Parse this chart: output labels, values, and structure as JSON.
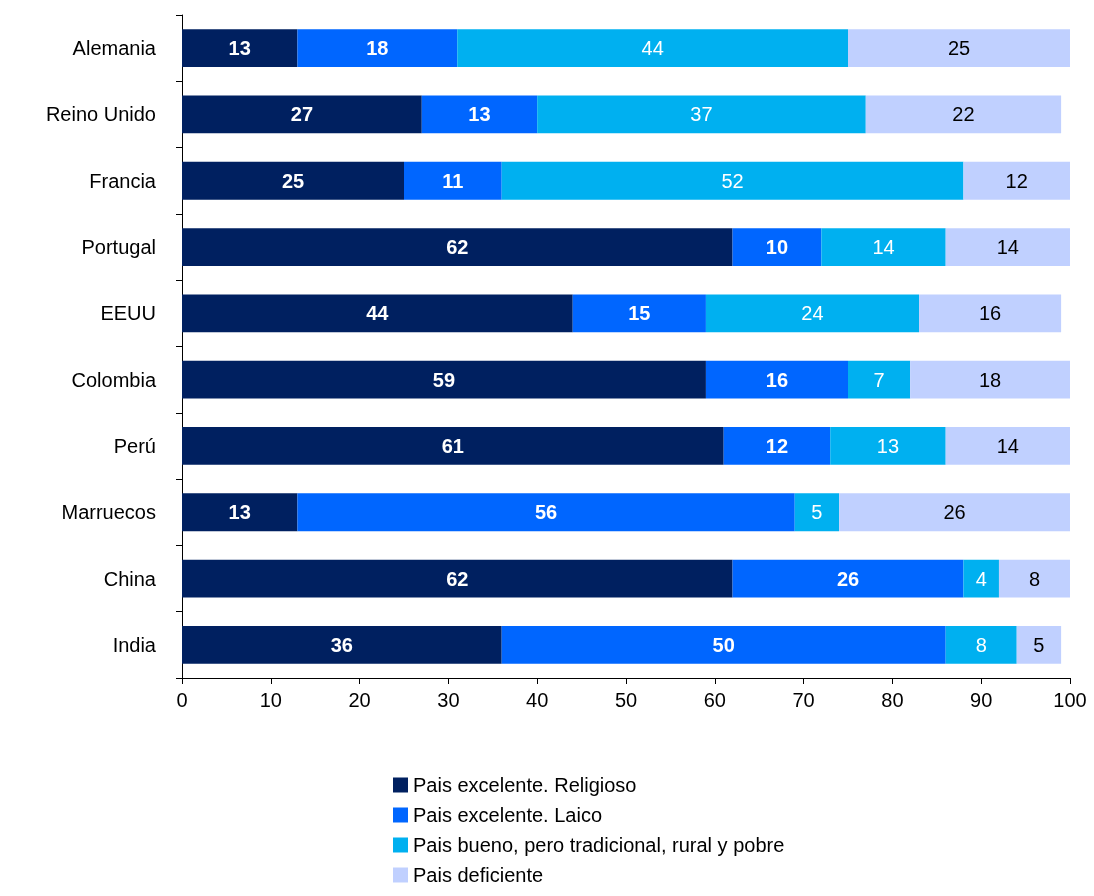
{
  "chart_data": {
    "type": "bar",
    "orientation": "horizontal",
    "stacked": true,
    "categories": [
      "Alemania",
      "Reino Unido",
      "Francia",
      "Portugal",
      "EEUU",
      "Colombia",
      "Perú",
      "Marruecos",
      "China",
      "India"
    ],
    "series": [
      {
        "name": "Pais excelente. Religioso",
        "color": "#002060",
        "values": [
          13,
          27,
          25,
          62,
          44,
          59,
          61,
          13,
          62,
          36
        ]
      },
      {
        "name": "Pais excelente. Laico",
        "color": "#0066ff",
        "values": [
          18,
          13,
          11,
          10,
          15,
          16,
          12,
          56,
          26,
          50
        ]
      },
      {
        "name": "Pais bueno, pero tradicional, rural y pobre",
        "color": "#00b0f0",
        "values": [
          44,
          37,
          52,
          14,
          24,
          7,
          13,
          5,
          4,
          8
        ]
      },
      {
        "name": "Pais deficiente",
        "color": "#c0d0ff",
        "values": [
          25,
          22,
          12,
          14,
          16,
          18,
          14,
          26,
          8,
          5
        ]
      }
    ],
    "xlim": [
      0,
      100
    ],
    "xticks": [
      0,
      10,
      20,
      30,
      40,
      50,
      60,
      70,
      80,
      90,
      100
    ],
    "data_labels": true,
    "grid": false,
    "legend": "bottom"
  }
}
